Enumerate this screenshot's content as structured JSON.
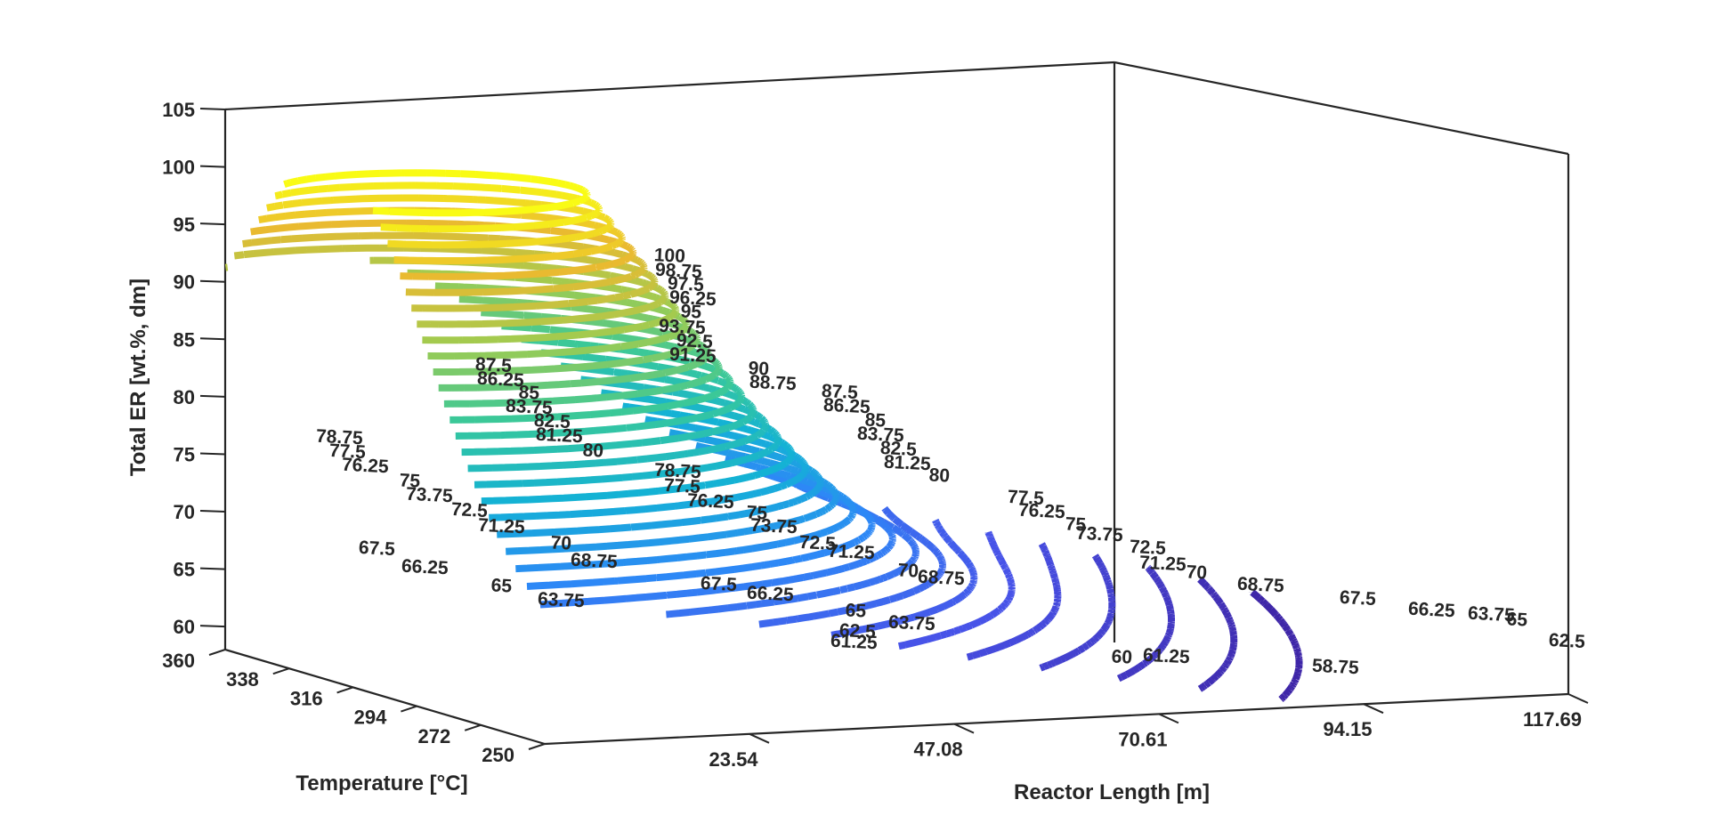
{
  "chart_data": {
    "type": "contour3",
    "title": "",
    "xlabel": "Reactor Length [m]",
    "ylabel": "Temperature [°C]",
    "zlabel": "Total ER [wt.%, dm]",
    "x_ticks": [
      "23.54",
      "47.08",
      "70.61",
      "94.15",
      "117.69"
    ],
    "y_ticks": [
      "250",
      "272",
      "294",
      "316",
      "338",
      "360"
    ],
    "z_ticks": [
      "60",
      "65",
      "70",
      "75",
      "80",
      "85",
      "90",
      "95",
      "100",
      "105"
    ],
    "xlim": [
      0,
      117.69
    ],
    "ylim": [
      250,
      360
    ],
    "zlim": [
      58,
      105
    ],
    "level_step": 1.25,
    "level_range": [
      58.75,
      100
    ],
    "colormap": "parula",
    "grid": false,
    "box": true,
    "contour_labels": [
      "100",
      "98.75",
      "97.5",
      "96.25",
      "95",
      "93.75",
      "92.5",
      "91.25",
      "90",
      "88.75",
      "87.5",
      "86.25",
      "85",
      "83.75",
      "82.5",
      "81.25",
      "80",
      "87.5",
      "86.25",
      "85",
      "83.75",
      "82.5",
      "81.25",
      "80",
      "78.75",
      "77.5",
      "76.25",
      "75",
      "73.75",
      "72.5",
      "71.25",
      "70",
      "68.75",
      "67.5",
      "66.25",
      "65",
      "63.75",
      "78.75",
      "77.5",
      "76.25",
      "75",
      "73.75",
      "72.5",
      "71.25",
      "70",
      "68.75",
      "67.5",
      "66.25",
      "65",
      "63.75",
      "62.5",
      "61.25",
      "77.5",
      "76.25",
      "75",
      "73.75",
      "72.5",
      "71.25",
      "70",
      "68.75",
      "67.5",
      "66.25",
      "65",
      "63.75",
      "62.5",
      "61.25",
      "60",
      "58.75"
    ]
  }
}
